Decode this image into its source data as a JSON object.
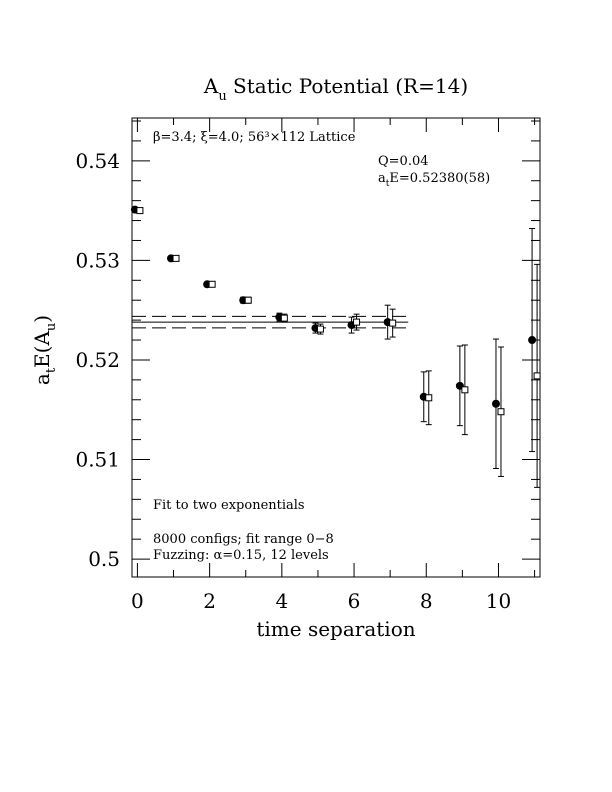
{
  "chart_data": {
    "type": "scatter",
    "title_main": "A",
    "title_sub": "u",
    "title_rest": " Static Potential (R=14)",
    "xlabel": "time separation",
    "ylabel_prefix": "a",
    "ylabel_sub1": "t",
    "ylabel_mid": "E(A",
    "ylabel_sub2": "u",
    "ylabel_suffix": ")",
    "xlim": [
      -0.15,
      11.15
    ],
    "ylim": [
      0.4982,
      0.5443
    ],
    "x_ticks": [
      0,
      2,
      4,
      6,
      8,
      10
    ],
    "x_tick_labels": [
      "0",
      "2",
      "4",
      "6",
      "8",
      "10"
    ],
    "y_ticks": [
      0.5,
      0.51,
      0.52,
      0.53,
      0.54
    ],
    "y_tick_labels": [
      "0.5",
      "0.51",
      "0.52",
      "0.53",
      "0.54"
    ],
    "lattice_label": "β=3.4; ξ=4.0; 56³×112 Lattice",
    "q_label": "Q=0.04",
    "energy_label_prefix": "a",
    "energy_label_sub": "t",
    "energy_label_rest": "E=0.52380(58)",
    "fit_label": "Fit to two exponentials",
    "configs_label": "8000 configs; fit range 0−8",
    "fuzzing_label": "Fuzzing: α=0.15, 12 levels",
    "fit": {
      "center": 0.5238,
      "error": 0.00058,
      "x_range": [
        0,
        7.5
      ]
    },
    "series": [
      {
        "marker": "filled-circle",
        "points": [
          {
            "x": 0,
            "y": 0.5351,
            "err": 0.0002
          },
          {
            "x": 1,
            "y": 0.5302,
            "err": 0.0002
          },
          {
            "x": 2,
            "y": 0.5276,
            "err": 0.0002
          },
          {
            "x": 3,
            "y": 0.526,
            "err": 0.0003
          },
          {
            "x": 4,
            "y": 0.5243,
            "err": 0.0004
          },
          {
            "x": 5,
            "y": 0.5232,
            "err": 0.0005
          },
          {
            "x": 6,
            "y": 0.5235,
            "err": 0.0008
          },
          {
            "x": 7,
            "y": 0.5238,
            "err": 0.0017
          },
          {
            "x": 8,
            "y": 0.5163,
            "err": 0.0025
          },
          {
            "x": 9,
            "y": 0.5174,
            "err": 0.004
          },
          {
            "x": 10,
            "y": 0.5156,
            "err": 0.0065
          },
          {
            "x": 11,
            "y": 0.522,
            "err": 0.0112
          }
        ]
      },
      {
        "marker": "open-square",
        "points": [
          {
            "x": 0,
            "y": 0.535,
            "err": 0.0002
          },
          {
            "x": 1,
            "y": 0.5302,
            "err": 0.0002
          },
          {
            "x": 2,
            "y": 0.5276,
            "err": 0.0002
          },
          {
            "x": 3,
            "y": 0.526,
            "err": 0.0003
          },
          {
            "x": 4,
            "y": 0.5242,
            "err": 0.0004
          },
          {
            "x": 5,
            "y": 0.5231,
            "err": 0.0005
          },
          {
            "x": 6,
            "y": 0.5238,
            "err": 0.0008
          },
          {
            "x": 7,
            "y": 0.5237,
            "err": 0.0014
          },
          {
            "x": 8,
            "y": 0.5162,
            "err": 0.0027
          },
          {
            "x": 9,
            "y": 0.517,
            "err": 0.0045
          },
          {
            "x": 10,
            "y": 0.5148,
            "err": 0.0065
          },
          {
            "x": 11,
            "y": 0.5184,
            "err": 0.0112
          }
        ]
      }
    ]
  }
}
